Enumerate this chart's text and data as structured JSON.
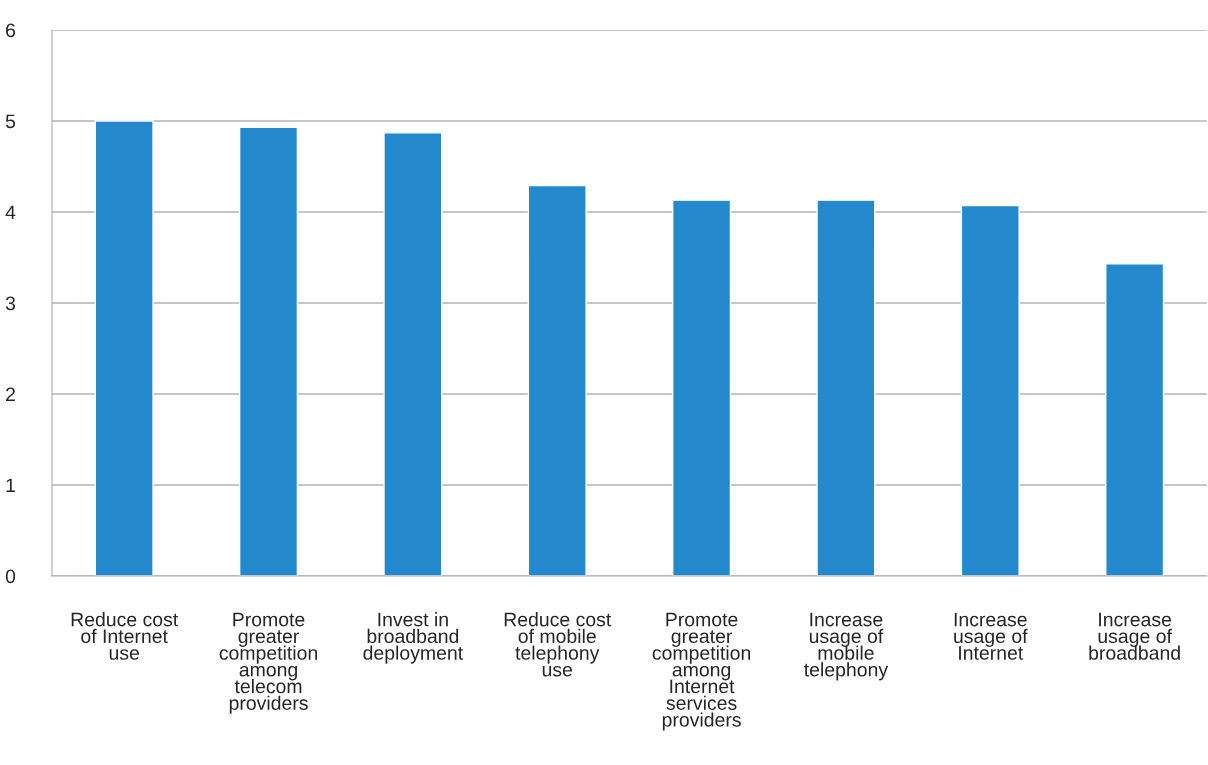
{
  "chart_data": {
    "type": "bar",
    "categories": [
      "Reduce cost\nof Internet\nuse",
      "Promote\ngreater\ncompetition\namong\ntelecom\nproviders",
      "Invest in\nbroadband\ndeployment",
      "Reduce cost\nof mobile\ntelephony\nuse",
      "Promote\ngreater\ncompetition\namong\nInternet\nservices\nproviders",
      "Increase\nusage of\nmobile\ntelephony",
      "Increase\nusage of\nInternet",
      "Increase\nusage of\nbroadband"
    ],
    "values": [
      5.0,
      4.93,
      4.87,
      4.29,
      4.13,
      4.13,
      4.07,
      3.43
    ],
    "color": "#2389cc",
    "ylim": [
      0,
      6
    ],
    "yticks": [
      0,
      1,
      2,
      3,
      4,
      5,
      6
    ],
    "grid": "y"
  }
}
